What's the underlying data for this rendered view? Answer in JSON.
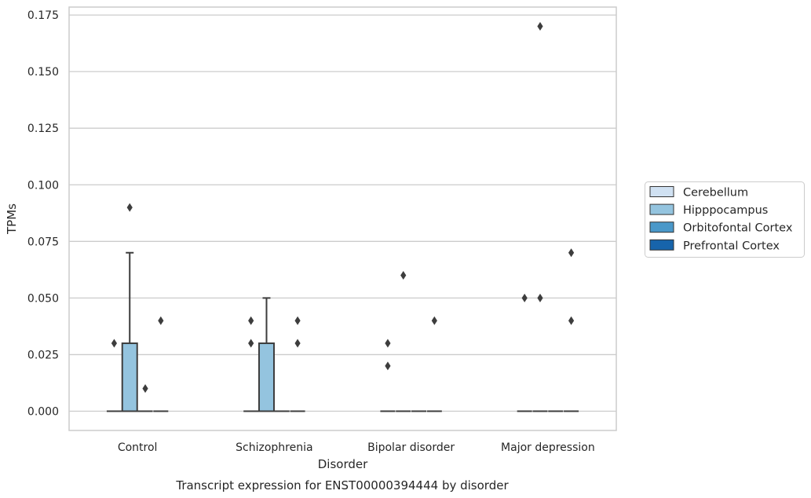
{
  "chart_data": {
    "type": "box",
    "caption": "Transcript expression for ENST00000394444 by disorder",
    "xlabel": "Disorder",
    "ylabel": "TPMs",
    "ylim": [
      -0.0085,
      0.1785
    ],
    "yticks": [
      0.0,
      0.025,
      0.05,
      0.075,
      0.1,
      0.125,
      0.15,
      0.175
    ],
    "ytick_labels": [
      "0.000",
      "0.025",
      "0.050",
      "0.075",
      "0.100",
      "0.125",
      "0.150",
      "0.175"
    ],
    "grid": true,
    "legend_position": "right",
    "categories": [
      "Control",
      "Schizophrenia",
      "Bipolar disorder",
      "Major depression"
    ],
    "series": [
      {
        "name": "Cerebellum",
        "color": "#d0e1f2",
        "boxes": [
          {
            "q1": 0,
            "median": 0,
            "q3": 0,
            "whislo": 0,
            "whishi": 0,
            "fliers": [
              0.03
            ]
          },
          {
            "q1": 0,
            "median": 0,
            "q3": 0,
            "whislo": 0,
            "whishi": 0,
            "fliers": [
              0.03,
              0.04
            ]
          },
          {
            "q1": 0,
            "median": 0,
            "q3": 0,
            "whislo": 0,
            "whishi": 0,
            "fliers": [
              0.02,
              0.03
            ]
          },
          {
            "q1": 0,
            "median": 0,
            "q3": 0,
            "whislo": 0,
            "whishi": 0,
            "fliers": [
              0.05
            ]
          }
        ]
      },
      {
        "name": "Hipppocampus",
        "color": "#94c4df",
        "boxes": [
          {
            "q1": 0,
            "median": 0,
            "q3": 0.03,
            "whislo": 0,
            "whishi": 0.07,
            "fliers": [
              0.09
            ]
          },
          {
            "q1": 0,
            "median": 0,
            "q3": 0.03,
            "whislo": 0,
            "whishi": 0.05,
            "fliers": []
          },
          {
            "q1": 0,
            "median": 0,
            "q3": 0,
            "whislo": 0,
            "whishi": 0,
            "fliers": [
              0.06
            ]
          },
          {
            "q1": 0,
            "median": 0,
            "q3": 0,
            "whislo": 0,
            "whishi": 0,
            "fliers": [
              0.05,
              0.17
            ]
          }
        ]
      },
      {
        "name": "Orbitofontal Cortex",
        "color": "#4a98c9",
        "boxes": [
          {
            "q1": 0,
            "median": 0,
            "q3": 0,
            "whislo": 0,
            "whishi": 0,
            "fliers": [
              0.01
            ]
          },
          {
            "q1": 0,
            "median": 0,
            "q3": 0,
            "whislo": 0,
            "whishi": 0,
            "fliers": []
          },
          {
            "q1": 0,
            "median": 0,
            "q3": 0,
            "whislo": 0,
            "whishi": 0,
            "fliers": []
          },
          {
            "q1": 0,
            "median": 0,
            "q3": 0,
            "whislo": 0,
            "whishi": 0,
            "fliers": []
          }
        ]
      },
      {
        "name": "Prefrontal Cortex",
        "color": "#1764ab",
        "boxes": [
          {
            "q1": 0,
            "median": 0,
            "q3": 0,
            "whislo": 0,
            "whishi": 0,
            "fliers": [
              0.04
            ]
          },
          {
            "q1": 0,
            "median": 0,
            "q3": 0,
            "whislo": 0,
            "whishi": 0,
            "fliers": [
              0.03,
              0.04
            ]
          },
          {
            "q1": 0,
            "median": 0,
            "q3": 0,
            "whislo": 0,
            "whishi": 0,
            "fliers": [
              0.04
            ]
          },
          {
            "q1": 0,
            "median": 0,
            "q3": 0,
            "whislo": 0,
            "whishi": 0,
            "fliers": [
              0.04,
              0.07
            ]
          }
        ]
      }
    ]
  }
}
